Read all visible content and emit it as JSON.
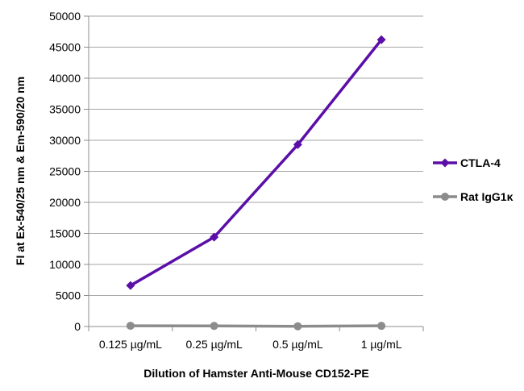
{
  "chart_data": {
    "type": "line",
    "title": "",
    "xlabel": "Dilution of Hamster Anti-Mouse CD152-PE",
    "ylabel": "FI at Ex-540/25 nm & Em-590/20 nm",
    "categories": [
      "0.125 µg/mL",
      "0.25 µg/mL",
      "0.5 µg/mL",
      "1 µg/mL"
    ],
    "ylim": [
      0,
      50000
    ],
    "yticks": [
      0,
      5000,
      10000,
      15000,
      20000,
      25000,
      30000,
      35000,
      40000,
      45000,
      50000
    ],
    "grid": "horizontal",
    "legend": "right",
    "series": [
      {
        "name": "CTLA-4",
        "values": [
          6600,
          14400,
          29300,
          46200
        ],
        "color": "#5b0fa8",
        "marker": "diamond"
      },
      {
        "name": "Rat IgG1κ",
        "values": [
          120,
          100,
          40,
          110
        ],
        "color": "#8c8c8c",
        "marker": "circle"
      }
    ]
  }
}
